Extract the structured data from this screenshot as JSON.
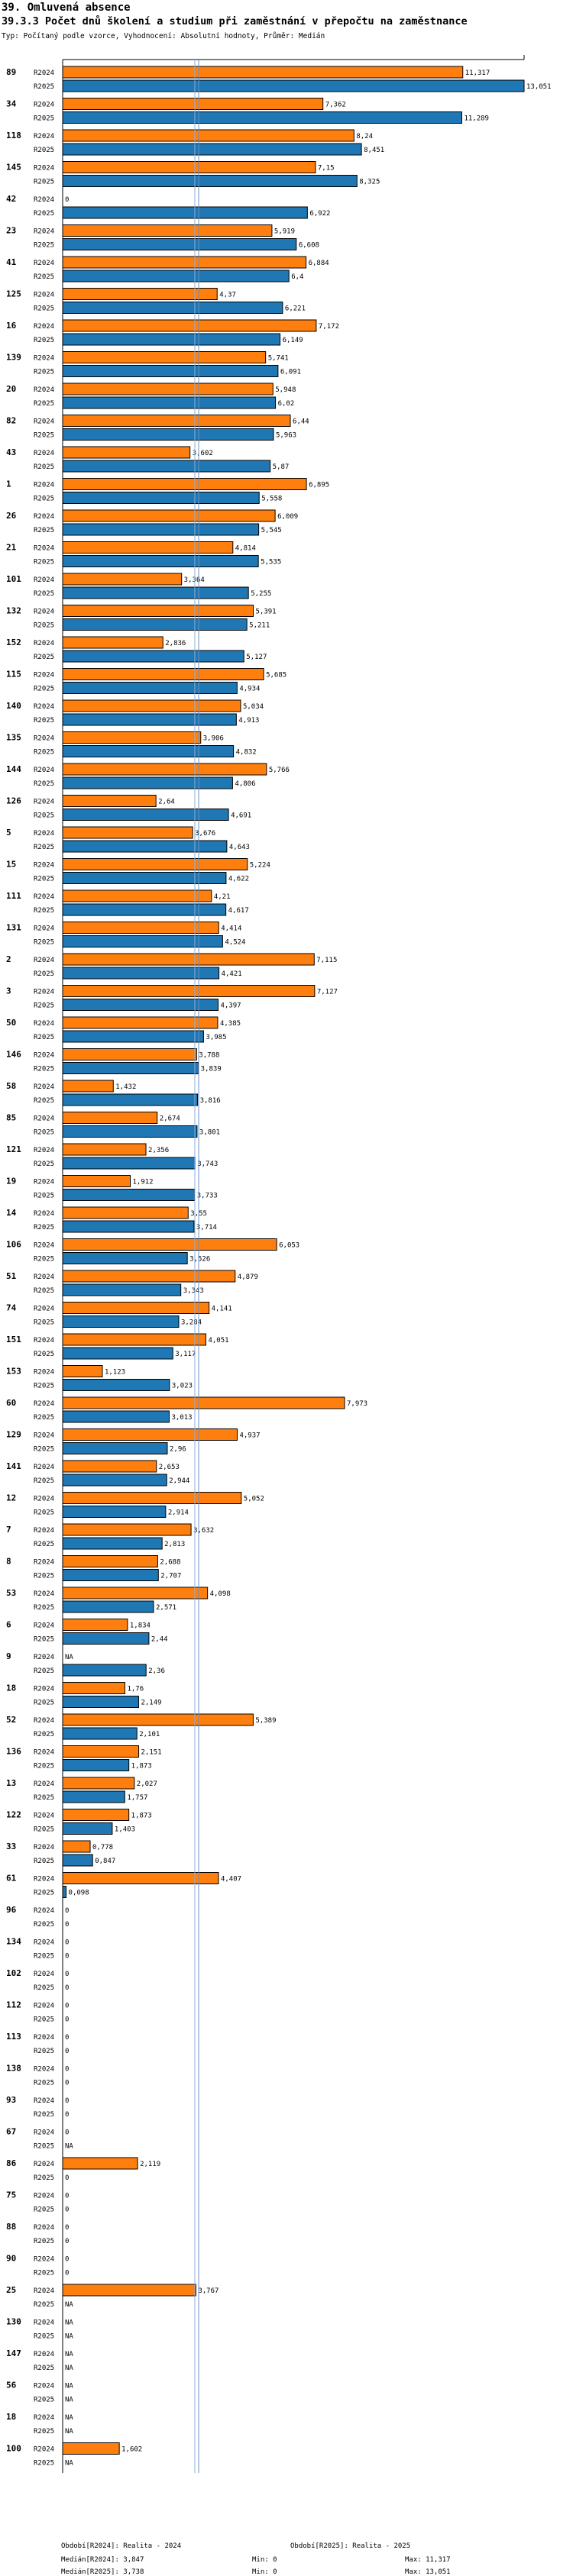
{
  "header": {
    "section_title": "39. Omluvená absence",
    "chart_title": "39.3.3 Počet dnů školení a studium při zaměstnání v přepočtu na zaměstnance",
    "subtitle": "Typ: Počítaný podle vzorce, Vyhodnocení: Absolutní hodnoty, Průměr: Medián"
  },
  "colors": {
    "R2024": "#ff7f0e",
    "R2025": "#1f77b4",
    "border": "#000000",
    "median_line_2024": "#6e93c4",
    "median_line_2025": "#8ab0d8"
  },
  "chart_data": {
    "type": "bar",
    "orientation": "horizontal",
    "series_names": [
      "R2024",
      "R2025"
    ],
    "xlim": [
      0,
      13.051
    ],
    "medians": {
      "R2024": 3.847,
      "R2025": 3.738
    },
    "missing_label": "NA",
    "groups": [
      {
        "id": "89",
        "R2024": 11.317,
        "R2025": 13.051,
        "label2024": "11,317",
        "label2025": "13,051"
      },
      {
        "id": "34",
        "R2024": 7.362,
        "R2025": 11.289,
        "label2024": "7,362",
        "label2025": "11,289"
      },
      {
        "id": "118",
        "R2024": 8.24,
        "R2025": 8.451,
        "label2024": "8,24",
        "label2025": "8,451"
      },
      {
        "id": "145",
        "R2024": 7.15,
        "R2025": 8.325,
        "label2024": "7,15",
        "label2025": "8,325"
      },
      {
        "id": "42",
        "R2024": 0,
        "R2025": 6.922,
        "label2024": "0",
        "label2025": "6,922"
      },
      {
        "id": "23",
        "R2024": 5.919,
        "R2025": 6.608,
        "label2024": "5,919",
        "label2025": "6,608"
      },
      {
        "id": "41",
        "R2024": 6.884,
        "R2025": 6.4,
        "label2024": "6,884",
        "label2025": "6,4"
      },
      {
        "id": "125",
        "R2024": 4.37,
        "R2025": 6.221,
        "label2024": "4,37",
        "label2025": "6,221"
      },
      {
        "id": "16",
        "R2024": 7.172,
        "R2025": 6.149,
        "label2024": "7,172",
        "label2025": "6,149"
      },
      {
        "id": "139",
        "R2024": 5.741,
        "R2025": 6.091,
        "label2024": "5,741",
        "label2025": "6,091"
      },
      {
        "id": "20",
        "R2024": 5.948,
        "R2025": 6.02,
        "label2024": "5,948",
        "label2025": "6,02"
      },
      {
        "id": "82",
        "R2024": 6.44,
        "R2025": 5.963,
        "label2024": "6,44",
        "label2025": "5,963"
      },
      {
        "id": "43",
        "R2024": 3.602,
        "R2025": 5.87,
        "label2024": "3,602",
        "label2025": "5,87"
      },
      {
        "id": "1",
        "R2024": 6.895,
        "R2025": 5.558,
        "label2024": "6,895",
        "label2025": "5,558"
      },
      {
        "id": "26",
        "R2024": 6.009,
        "R2025": 5.545,
        "label2024": "6,009",
        "label2025": "5,545"
      },
      {
        "id": "21",
        "R2024": 4.814,
        "R2025": 5.535,
        "label2024": "4,814",
        "label2025": "5,535"
      },
      {
        "id": "101",
        "R2024": 3.364,
        "R2025": 5.255,
        "label2024": "3,364",
        "label2025": "5,255"
      },
      {
        "id": "132",
        "R2024": 5.391,
        "R2025": 5.211,
        "label2024": "5,391",
        "label2025": "5,211"
      },
      {
        "id": "152",
        "R2024": 2.836,
        "R2025": 5.127,
        "label2024": "2,836",
        "label2025": "5,127"
      },
      {
        "id": "115",
        "R2024": 5.685,
        "R2025": 4.934,
        "label2024": "5,685",
        "label2025": "4,934"
      },
      {
        "id": "140",
        "R2024": 5.034,
        "R2025": 4.913,
        "label2024": "5,034",
        "label2025": "4,913"
      },
      {
        "id": "135",
        "R2024": 3.906,
        "R2025": 4.832,
        "label2024": "3,906",
        "label2025": "4,832"
      },
      {
        "id": "144",
        "R2024": 5.766,
        "R2025": 4.806,
        "label2024": "5,766",
        "label2025": "4,806"
      },
      {
        "id": "126",
        "R2024": 2.64,
        "R2025": 4.691,
        "label2024": "2,64",
        "label2025": "4,691"
      },
      {
        "id": "5",
        "R2024": 3.676,
        "R2025": 4.643,
        "label2024": "3,676",
        "label2025": "4,643"
      },
      {
        "id": "15",
        "R2024": 5.224,
        "R2025": 4.622,
        "label2024": "5,224",
        "label2025": "4,622"
      },
      {
        "id": "111",
        "R2024": 4.21,
        "R2025": 4.617,
        "label2024": "4,21",
        "label2025": "4,617"
      },
      {
        "id": "131",
        "R2024": 4.414,
        "R2025": 4.524,
        "label2024": "4,414",
        "label2025": "4,524"
      },
      {
        "id": "2",
        "R2024": 7.115,
        "R2025": 4.421,
        "label2024": "7,115",
        "label2025": "4,421"
      },
      {
        "id": "3",
        "R2024": 7.127,
        "R2025": 4.397,
        "label2024": "7,127",
        "label2025": "4,397"
      },
      {
        "id": "50",
        "R2024": 4.385,
        "R2025": 3.985,
        "label2024": "4,385",
        "label2025": "3,985"
      },
      {
        "id": "146",
        "R2024": 3.788,
        "R2025": 3.839,
        "label2024": "3,788",
        "label2025": "3,839"
      },
      {
        "id": "58",
        "R2024": 1.432,
        "R2025": 3.816,
        "label2024": "1,432",
        "label2025": "3,816"
      },
      {
        "id": "85",
        "R2024": 2.674,
        "R2025": 3.801,
        "label2024": "2,674",
        "label2025": "3,801"
      },
      {
        "id": "121",
        "R2024": 2.356,
        "R2025": 3.743,
        "label2024": "2,356",
        "label2025": "3,743"
      },
      {
        "id": "19",
        "R2024": 1.912,
        "R2025": 3.733,
        "label2024": "1,912",
        "label2025": "3,733"
      },
      {
        "id": "14",
        "R2024": 3.55,
        "R2025": 3.714,
        "label2024": "3,55",
        "label2025": "3,714"
      },
      {
        "id": "106",
        "R2024": 6.053,
        "R2025": 3.526,
        "label2024": "6,053",
        "label2025": "3,526"
      },
      {
        "id": "51",
        "R2024": 4.879,
        "R2025": 3.343,
        "label2024": "4,879",
        "label2025": "3,343"
      },
      {
        "id": "74",
        "R2024": 4.141,
        "R2025": 3.284,
        "label2024": "4,141",
        "label2025": "3,284"
      },
      {
        "id": "151",
        "R2024": 4.051,
        "R2025": 3.117,
        "label2024": "4,051",
        "label2025": "3,117"
      },
      {
        "id": "153",
        "R2024": 1.123,
        "R2025": 3.023,
        "label2024": "1,123",
        "label2025": "3,023"
      },
      {
        "id": "60",
        "R2024": 7.973,
        "R2025": 3.013,
        "label2024": "7,973",
        "label2025": "3,013"
      },
      {
        "id": "129",
        "R2024": 4.937,
        "R2025": 2.96,
        "label2024": "4,937",
        "label2025": "2,96"
      },
      {
        "id": "141",
        "R2024": 2.653,
        "R2025": 2.944,
        "label2024": "2,653",
        "label2025": "2,944"
      },
      {
        "id": "12",
        "R2024": 5.052,
        "R2025": 2.914,
        "label2024": "5,052",
        "label2025": "2,914"
      },
      {
        "id": "7",
        "R2024": 3.632,
        "R2025": 2.813,
        "label2024": "3,632",
        "label2025": "2,813"
      },
      {
        "id": "8",
        "R2024": 2.688,
        "R2025": 2.707,
        "label2024": "2,688",
        "label2025": "2,707"
      },
      {
        "id": "53",
        "R2024": 4.098,
        "R2025": 2.571,
        "label2024": "4,098",
        "label2025": "2,571"
      },
      {
        "id": "6",
        "R2024": 1.834,
        "R2025": 2.44,
        "label2024": "1,834",
        "label2025": "2,44"
      },
      {
        "id": "9",
        "R2024": null,
        "R2025": 2.36,
        "label2024": "NA",
        "label2025": "2,36"
      },
      {
        "id": "18",
        "R2024": 1.76,
        "R2025": 2.149,
        "label2024": "1,76",
        "label2025": "2,149"
      },
      {
        "id": "52",
        "R2024": 5.389,
        "R2025": 2.101,
        "label2024": "5,389",
        "label2025": "2,101"
      },
      {
        "id": "136",
        "R2024": 2.151,
        "R2025": 1.873,
        "label2024": "2,151",
        "label2025": "1,873"
      },
      {
        "id": "13",
        "R2024": 2.027,
        "R2025": 1.757,
        "label2024": "2,027",
        "label2025": "1,757"
      },
      {
        "id": "122",
        "R2024": 1.873,
        "R2025": 1.403,
        "label2024": "1,873",
        "label2025": "1,403"
      },
      {
        "id": "33",
        "R2024": 0.778,
        "R2025": 0.847,
        "label2024": "0,778",
        "label2025": "0,847"
      },
      {
        "id": "61",
        "R2024": 4.407,
        "R2025": 0.098,
        "label2024": "4,407",
        "label2025": "0,098"
      },
      {
        "id": "96",
        "R2024": 0,
        "R2025": 0,
        "label2024": "0",
        "label2025": "0"
      },
      {
        "id": "134",
        "R2024": 0,
        "R2025": 0,
        "label2024": "0",
        "label2025": "0"
      },
      {
        "id": "102",
        "R2024": 0,
        "R2025": 0,
        "label2024": "0",
        "label2025": "0"
      },
      {
        "id": "112",
        "R2024": 0,
        "R2025": 0,
        "label2024": "0",
        "label2025": "0"
      },
      {
        "id": "113",
        "R2024": 0,
        "R2025": 0,
        "label2024": "0",
        "label2025": "0"
      },
      {
        "id": "138",
        "R2024": 0,
        "R2025": 0,
        "label2024": "0",
        "label2025": "0"
      },
      {
        "id": "93",
        "R2024": 0,
        "R2025": 0,
        "label2024": "0",
        "label2025": "0"
      },
      {
        "id": "67",
        "R2024": 0,
        "R2025": null,
        "label2024": "0",
        "label2025": "NA"
      },
      {
        "id": "86",
        "R2024": 2.119,
        "R2025": 0,
        "label2024": "2,119",
        "label2025": "0"
      },
      {
        "id": "75",
        "R2024": 0,
        "R2025": 0,
        "label2024": "0",
        "label2025": "0"
      },
      {
        "id": "88",
        "R2024": 0,
        "R2025": 0,
        "label2024": "0",
        "label2025": "0"
      },
      {
        "id": "90",
        "R2024": 0,
        "R2025": 0,
        "label2024": "0",
        "label2025": "0"
      },
      {
        "id": "25",
        "R2024": 3.767,
        "R2025": null,
        "label2024": "3,767",
        "label2025": "NA"
      },
      {
        "id": "130",
        "R2024": null,
        "R2025": null,
        "label2024": "NA",
        "label2025": "NA"
      },
      {
        "id": "147",
        "R2024": null,
        "R2025": null,
        "label2024": "NA",
        "label2025": "NA"
      },
      {
        "id": "56",
        "R2024": null,
        "R2025": null,
        "label2024": "NA",
        "label2025": "NA"
      },
      {
        "id": "18",
        "R2024": null,
        "R2025": null,
        "label2024": "NA",
        "label2025": "NA"
      },
      {
        "id": "100",
        "R2024": 1.602,
        "R2025": null,
        "label2024": "1,602",
        "label2025": "NA"
      }
    ]
  },
  "footer": {
    "period_2024": "Období[R2024]: Realita - 2024",
    "period_2025": "Období[R2025]: Realita - 2025",
    "median_2024": "Medián[R2024]: 3,847",
    "median_2025": "Medián[R2025]: 3,738",
    "min_2024": "Min: 0",
    "min_2025": "Min: 0",
    "max_2024": "Max: 11,317",
    "max_2025": "Max: 13,051"
  }
}
